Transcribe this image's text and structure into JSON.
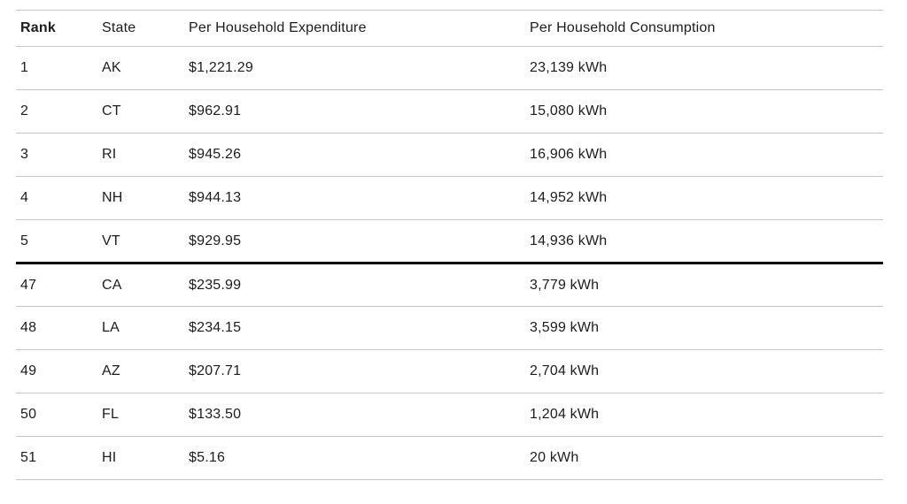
{
  "colors": {
    "background": "#ffffff",
    "text": "#1c1c1c",
    "grid": "#c6c6c6",
    "divider": "#000000"
  },
  "chart_data": {
    "type": "table",
    "columns": [
      "Rank",
      "State",
      "Per Household Expenditure",
      "Per Household Consumption"
    ],
    "rows": [
      [
        "1",
        "AK",
        "$1,221.29",
        "23,139 kWh"
      ],
      [
        "2",
        "CT",
        "$962.91",
        "15,080 kWh"
      ],
      [
        "3",
        "RI",
        "$945.26",
        "16,906 kWh"
      ],
      [
        "4",
        "NH",
        "$944.13",
        "14,952 kWh"
      ],
      [
        "5",
        "VT",
        "$929.95",
        "14,936 kWh"
      ],
      [
        "47",
        "CA",
        "$235.99",
        "3,779 kWh"
      ],
      [
        "48",
        "LA",
        "$234.15",
        "3,599 kWh"
      ],
      [
        "49",
        "AZ",
        "$207.71",
        "2,704 kWh"
      ],
      [
        "50",
        "FL",
        "$133.50",
        "1,204 kWh"
      ],
      [
        "51",
        "HI",
        "$5.16",
        "20 kWh"
      ]
    ],
    "divider_after_rank": "5",
    "title": "",
    "legend": "none",
    "grid": "horizontal-lines"
  }
}
